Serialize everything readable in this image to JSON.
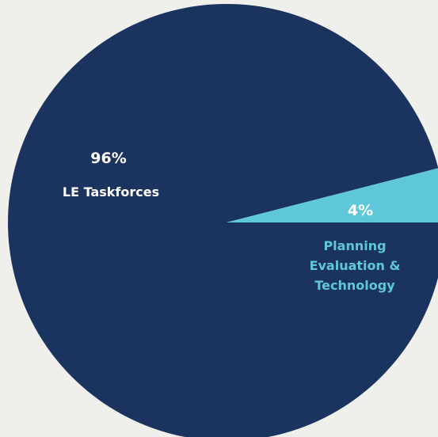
{
  "chart_data": {
    "type": "pie",
    "slices": [
      {
        "label": "LE Taskforces",
        "percent_label": "96%",
        "value": 96,
        "color": "#1b345f"
      },
      {
        "label_lines": [
          "Planning",
          "Evaluation &",
          "Technology"
        ],
        "percent_label": "4%",
        "value": 4,
        "color": "#5ec8da"
      }
    ],
    "background": "#eff0ec",
    "text_colors": {
      "LE Taskforces": "#ffffff",
      "Planning Evaluation & Technology": "#5ec8da",
      "small_slice_percent": "#ffffff"
    }
  }
}
